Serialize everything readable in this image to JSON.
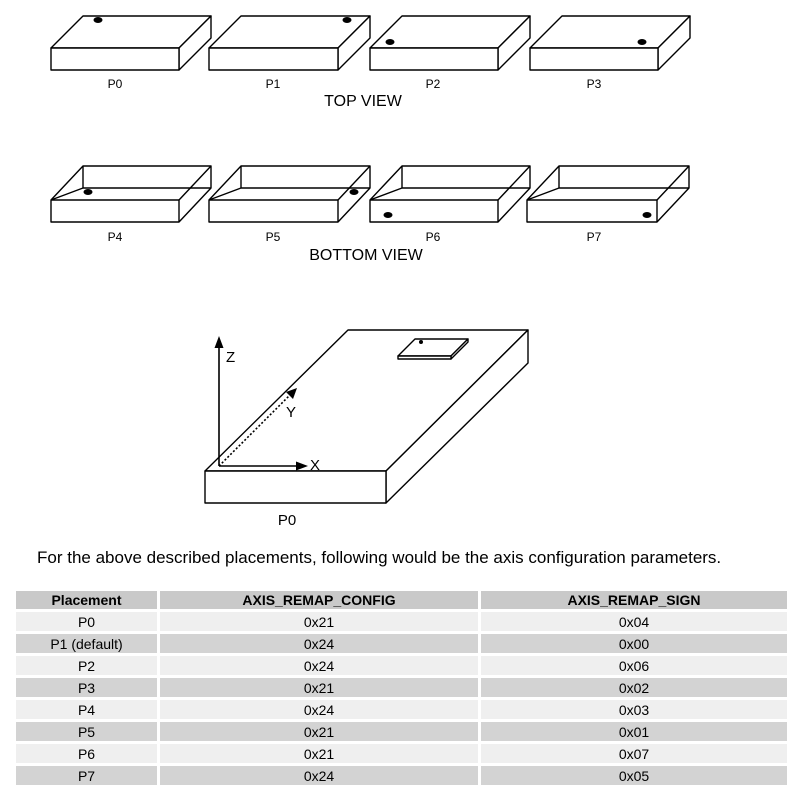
{
  "top_view": {
    "title": "TOP VIEW",
    "placements": [
      "P0",
      "P1",
      "P2",
      "P3"
    ]
  },
  "bottom_view": {
    "title": "BOTTOM VIEW",
    "placements": [
      "P4",
      "P5",
      "P6",
      "P7"
    ]
  },
  "axes_figure": {
    "axis_z": "Z",
    "axis_y": "Y",
    "axis_x": "X",
    "caption": "P0"
  },
  "description": "For the above described placements, following would be the axis configuration parameters.",
  "table": {
    "headers": [
      "Placement",
      "AXIS_REMAP_CONFIG",
      "AXIS_REMAP_SIGN"
    ],
    "rows": [
      [
        "P0",
        "0x21",
        "0x04"
      ],
      [
        "P1 (default)",
        "0x24",
        "0x00"
      ],
      [
        "P2",
        "0x24",
        "0x06"
      ],
      [
        "P3",
        "0x21",
        "0x02"
      ],
      [
        "P4",
        "0x24",
        "0x03"
      ],
      [
        "P5",
        "0x21",
        "0x01"
      ],
      [
        "P6",
        "0x21",
        "0x07"
      ],
      [
        "P7",
        "0x24",
        "0x05"
      ]
    ]
  }
}
